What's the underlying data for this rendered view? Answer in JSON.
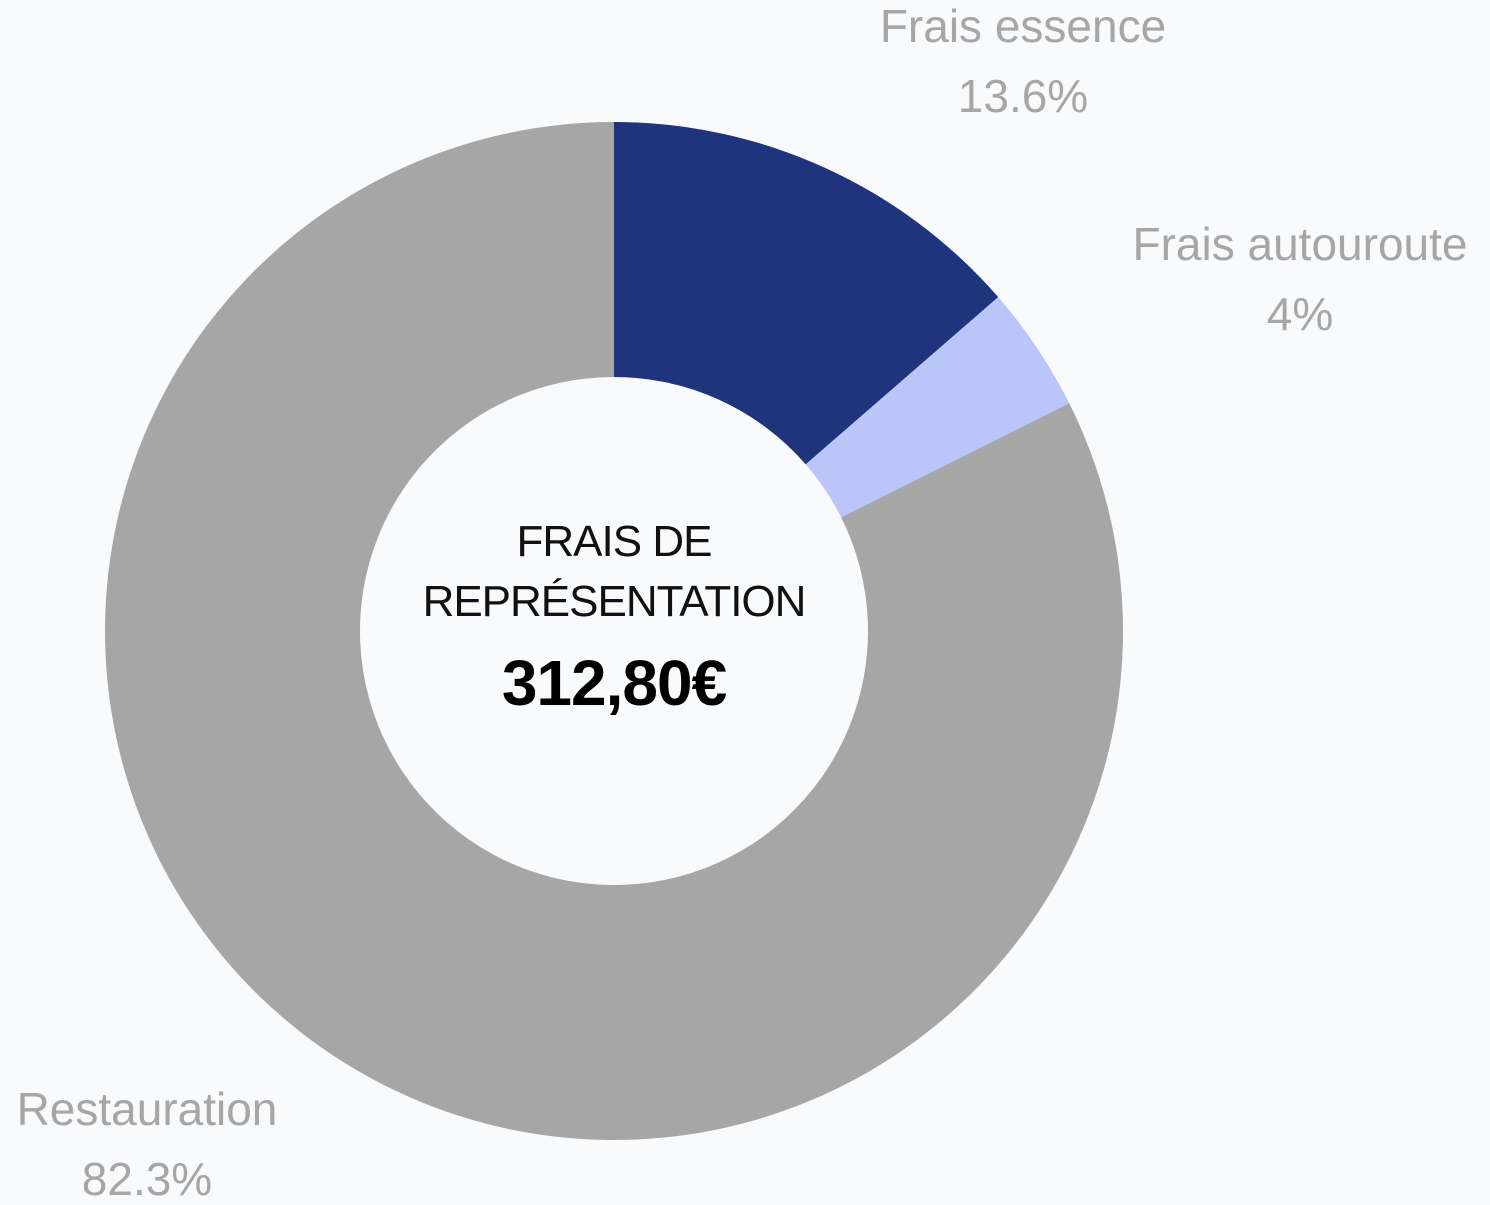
{
  "chart_data": {
    "type": "donut",
    "title": "FRAIS DE REPRÉSENTATION",
    "center_value": "312,80€",
    "categories": [
      "Frais essence",
      "Frais autouroute",
      "Restauration"
    ],
    "values": [
      13.6,
      4,
      82.3
    ],
    "value_labels": [
      "13.6%",
      "4%",
      "82.3%"
    ],
    "colors": [
      "#1f347d",
      "#b9c6f7",
      "#a6a6a6"
    ]
  }
}
